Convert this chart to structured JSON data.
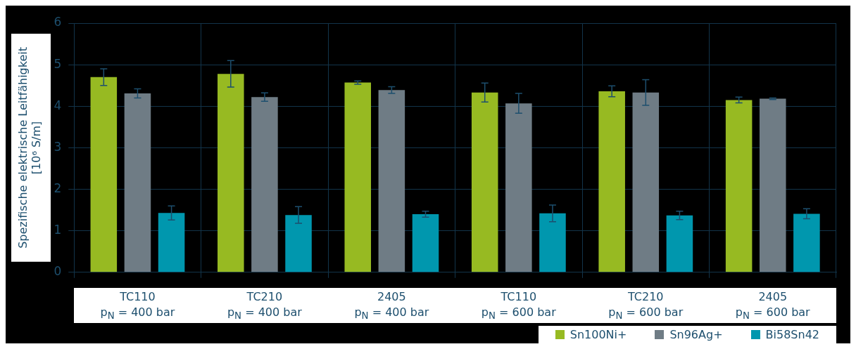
{
  "chart_data": {
    "type": "bar",
    "ylabel": "Spezifische elektrische Leitfähigkeit\n[10⁶ S/m]",
    "categories": [
      "TC110\np$_{N}$ = 400 bar",
      "TC210\np$_{N}$ = 400 bar",
      "2405\np$_{N}$ = 400 bar",
      "TC110\np$_{N}$ = 600 bar",
      "TC210\np$_{N}$ = 600 bar",
      "2405\np$_{N}$ = 600 bar"
    ],
    "series": [
      {
        "name": "Sn100Ni+",
        "color": "#97ba22",
        "values": [
          4.7,
          4.78,
          4.57,
          4.33,
          4.36,
          4.15
        ],
        "errors": [
          0.2,
          0.32,
          0.04,
          0.23,
          0.13,
          0.07
        ]
      },
      {
        "name": "Sn96Ag+",
        "color": "#6f7c85",
        "values": [
          4.31,
          4.22,
          4.39,
          4.07,
          4.33,
          4.18
        ],
        "errors": [
          0.11,
          0.1,
          0.08,
          0.24,
          0.31,
          0.02
        ]
      },
      {
        "name": "Bi58Sn42",
        "color": "#0097ae",
        "values": [
          1.43,
          1.38,
          1.4,
          1.42,
          1.37,
          1.41
        ],
        "errors": [
          0.17,
          0.2,
          0.07,
          0.2,
          0.1,
          0.12
        ]
      }
    ],
    "ylim": [
      0,
      6
    ],
    "yticks": [
      0,
      1,
      2,
      3,
      4,
      5,
      6
    ],
    "grid": true,
    "legend": "bottom"
  }
}
